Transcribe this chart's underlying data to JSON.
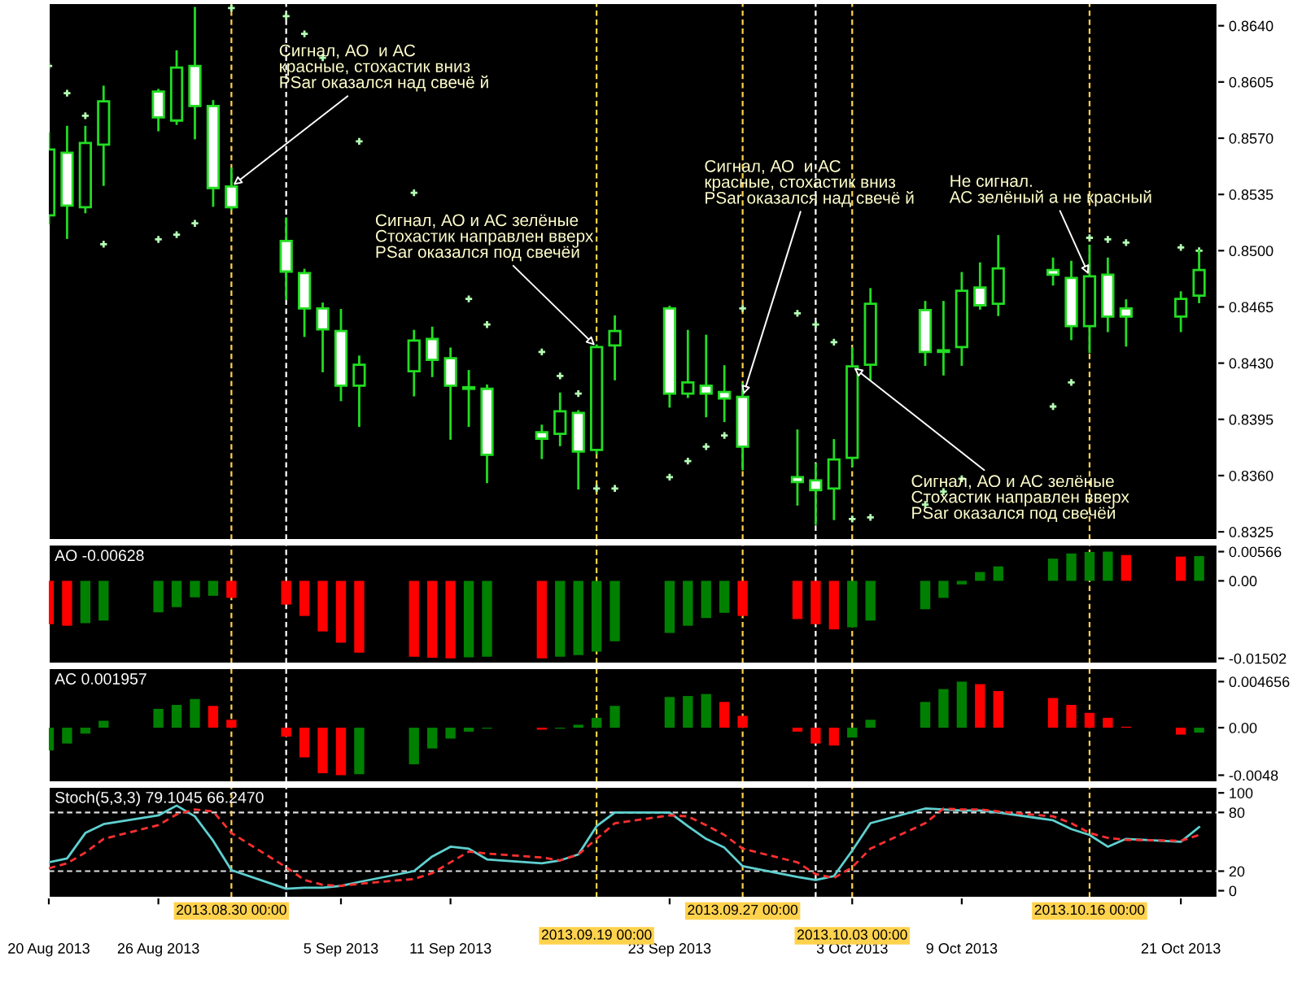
{
  "chart_data": [
    {
      "type": "candlestick",
      "color": "#22dd22",
      "xlim": [
        "2013-08-20",
        "2013-10-23"
      ],
      "tick_labels": "y",
      "x": [
        "2013-08-20",
        "2013-08-21",
        "2013-08-22",
        "2013-08-23",
        "2013-08-26",
        "2013-08-27",
        "2013-08-28",
        "2013-08-29",
        "2013-08-30",
        "2013-09-02",
        "2013-09-03",
        "2013-09-04",
        "2013-09-05",
        "2013-09-06",
        "2013-09-09",
        "2013-09-10",
        "2013-09-11",
        "2013-09-12",
        "2013-09-13",
        "2013-09-16",
        "2013-09-17",
        "2013-09-18",
        "2013-09-19",
        "2013-09-20",
        "2013-09-23",
        "2013-09-24",
        "2013-09-25",
        "2013-09-26",
        "2013-09-27",
        "2013-09-30",
        "2013-10-01",
        "2013-10-02",
        "2013-10-03",
        "2013-10-04",
        "2013-10-07",
        "2013-10-08",
        "2013-10-09",
        "2013-10-10",
        "2013-10-11",
        "2013-10-14",
        "2013-10-15",
        "2013-10-16",
        "2013-10-17",
        "2013-10-18",
        "2013-10-21",
        "2013-10-22"
      ],
      "ohlc": [
        [
          0.8522,
          0.8573,
          0.8517,
          0.8563
        ],
        [
          0.8561,
          0.8577,
          0.8508,
          0.8528
        ],
        [
          0.8527,
          0.8577,
          0.8524,
          0.8567
        ],
        [
          0.8566,
          0.8602,
          0.8541,
          0.8593
        ],
        [
          0.8599,
          0.86,
          0.8575,
          0.8583
        ],
        [
          0.8581,
          0.8624,
          0.8579,
          0.8614
        ],
        [
          0.8615,
          0.8651,
          0.857,
          0.859
        ],
        [
          0.859,
          0.8593,
          0.8528,
          0.8539
        ],
        [
          0.854,
          0.8551,
          0.8526,
          0.8527
        ],
        [
          0.8506,
          0.852,
          0.847,
          0.8487
        ],
        [
          0.8486,
          0.8488,
          0.8447,
          0.8464
        ],
        [
          0.8464,
          0.8467,
          0.8425,
          0.8451
        ],
        [
          0.845,
          0.8463,
          0.8407,
          0.8416
        ],
        [
          0.8416,
          0.8434,
          0.8391,
          0.8429
        ],
        [
          0.8425,
          0.845,
          0.841,
          0.8444
        ],
        [
          0.8445,
          0.8452,
          0.8422,
          0.8432
        ],
        [
          0.8433,
          0.8439,
          0.8383,
          0.8416
        ],
        [
          0.8415,
          0.8425,
          0.8391,
          0.8414
        ],
        [
          0.8414,
          0.8416,
          0.8356,
          0.8373
        ],
        [
          0.8387,
          0.8391,
          0.8371,
          0.8383
        ],
        [
          0.8386,
          0.8411,
          0.8379,
          0.84
        ],
        [
          0.8399,
          0.84,
          0.8352,
          0.8375
        ],
        [
          0.8376,
          0.8441,
          0.8374,
          0.844
        ],
        [
          0.8441,
          0.8459,
          0.842,
          0.845
        ],
        [
          0.8464,
          0.8465,
          0.8403,
          0.8411
        ],
        [
          0.8411,
          0.845,
          0.8409,
          0.8418
        ],
        [
          0.8416,
          0.8447,
          0.8397,
          0.8411
        ],
        [
          0.8412,
          0.8428,
          0.8394,
          0.8408
        ],
        [
          0.8409,
          0.8417,
          0.8364,
          0.8378
        ],
        [
          0.8359,
          0.8388,
          0.8342,
          0.8356
        ],
        [
          0.8357,
          0.8367,
          0.833,
          0.8351
        ],
        [
          0.8352,
          0.8382,
          0.8333,
          0.837
        ],
        [
          0.8371,
          0.8439,
          0.8366,
          0.8428
        ],
        [
          0.8429,
          0.8476,
          0.842,
          0.8467
        ],
        [
          0.8463,
          0.8468,
          0.8429,
          0.8437
        ],
        [
          0.8437,
          0.8468,
          0.8423,
          0.8438
        ],
        [
          0.844,
          0.8486,
          0.8429,
          0.8475
        ],
        [
          0.8477,
          0.8492,
          0.8464,
          0.8466
        ],
        [
          0.8467,
          0.8509,
          0.846,
          0.8489
        ],
        [
          0.8488,
          0.8495,
          0.8479,
          0.8485
        ],
        [
          0.8483,
          0.8493,
          0.8445,
          0.8453
        ],
        [
          0.8453,
          0.8503,
          0.8437,
          0.8484
        ],
        [
          0.8485,
          0.8495,
          0.845,
          0.8459
        ],
        [
          0.8464,
          0.8469,
          0.8441,
          0.8459
        ],
        [
          0.8459,
          0.8474,
          0.845,
          0.847
        ],
        [
          0.8472,
          0.85,
          0.8468,
          0.8488
        ]
      ],
      "series": [
        {
          "type": "scatter",
          "color": "#b4ffb4",
          "marker": "cross",
          "values": [
            0.8615,
            0.8598,
            0.8584,
            0.8504,
            0.8507,
            0.851,
            0.8517,
            null,
            0.8651,
            0.8646,
            0.8635,
            0.862,
            null,
            0.8568,
            0.8536,
            null,
            null,
            0.847,
            0.8454,
            0.8437,
            0.8422,
            0.8411,
            0.8352,
            0.8352,
            0.8359,
            0.8369,
            0.8378,
            0.8385,
            0.8464,
            0.8461,
            0.8454,
            0.8443,
            0.8333,
            0.8334,
            0.8342,
            0.835,
            0.8358,
            null,
            null,
            0.8403,
            0.8418,
            0.8508,
            0.8507,
            0.8505,
            0.8502,
            0.85
          ]
        }
      ],
      "ylim": [
        0.832,
        0.8654
      ],
      "yticks": [
        {
          "value": 0.8325,
          "label": "0.8325"
        },
        {
          "value": 0.836,
          "label": "0.8360"
        },
        {
          "value": 0.8395,
          "label": "0.8395"
        },
        {
          "value": 0.843,
          "label": "0.8430"
        },
        {
          "value": 0.8465,
          "label": "0.8465"
        },
        {
          "value": 0.85,
          "label": "0.8500"
        },
        {
          "value": 0.8535,
          "label": "0.8535"
        },
        {
          "value": 0.857,
          "label": "0.8570"
        },
        {
          "value": 0.8605,
          "label": "0.8605"
        },
        {
          "value": 0.864,
          "label": "0.8640"
        }
      ],
      "annotations": [
        {
          "text": "Сигнал, АО  и АС\nкрасные, стохастик вниз\nPSar оказался над свечё й",
          "x": "2013-08-30",
          "y": 0.854
        },
        {
          "text": "Сигнал, АО и АС зелёные\nСтохастик направлен вверх\nPSar оказался под свечёй",
          "x": "2013-09-19",
          "y": 0.844
        },
        {
          "text": "Сигнал, АО  и АС\nкрасные, стохастик вниз\nPSar оказался над свечё й",
          "x": "2013-09-27",
          "y": 0.8409
        },
        {
          "text": "Сигнал, АО и АС зелёные\nСтохастик направлен вверх\nPSar оказался под свечёй",
          "x": "2013-10-03",
          "y": 0.8428
        },
        {
          "text": "Не сигнал.\nАС зелёный а не красный",
          "x": "2013-10-16",
          "y": 0.8484
        }
      ],
      "ref_lines": [
        {
          "axis": "x",
          "value": "2013-08-30",
          "color": "#ffd24d",
          "line_style": "dashed"
        },
        {
          "axis": "x",
          "value": "2013-09-02",
          "color": "#ffffff",
          "line_style": "dashed"
        },
        {
          "axis": "x",
          "value": "2013-09-19",
          "color": "#ffd24d",
          "line_style": "dashed"
        },
        {
          "axis": "x",
          "value": "2013-09-27",
          "color": "#ffd24d",
          "line_style": "dashed"
        },
        {
          "axis": "x",
          "value": "2013-10-01",
          "color": "#ffffff",
          "line_style": "dashed"
        },
        {
          "axis": "x",
          "value": "2013-10-03",
          "color": "#ffd24d",
          "line_style": "dashed"
        },
        {
          "axis": "x",
          "value": "2013-10-16",
          "color": "#ffd24d",
          "line_style": "dashed"
        }
      ]
    },
    {
      "type": "bar",
      "title": "AO -0.00628",
      "xlim": [
        "2013-08-20",
        "2013-10-23"
      ],
      "tick_labels": "y",
      "x": [
        "2013-08-20",
        "2013-08-21",
        "2013-08-22",
        "2013-08-23",
        "2013-08-26",
        "2013-08-27",
        "2013-08-28",
        "2013-08-29",
        "2013-08-30",
        "2013-09-02",
        "2013-09-03",
        "2013-09-04",
        "2013-09-05",
        "2013-09-06",
        "2013-09-09",
        "2013-09-10",
        "2013-09-11",
        "2013-09-12",
        "2013-09-13",
        "2013-09-16",
        "2013-09-17",
        "2013-09-18",
        "2013-09-19",
        "2013-09-20",
        "2013-09-23",
        "2013-09-24",
        "2013-09-25",
        "2013-09-26",
        "2013-09-27",
        "2013-09-30",
        "2013-10-01",
        "2013-10-02",
        "2013-10-03",
        "2013-10-04",
        "2013-10-07",
        "2013-10-08",
        "2013-10-09",
        "2013-10-10",
        "2013-10-11",
        "2013-10-14",
        "2013-10-15",
        "2013-10-16",
        "2013-10-17",
        "2013-10-18",
        "2013-10-21",
        "2013-10-22"
      ],
      "values": [
        -0.0084,
        -0.0087,
        -0.0082,
        -0.0077,
        -0.0061,
        -0.0051,
        -0.0032,
        -0.0029,
        -0.0033,
        -0.0046,
        -0.0068,
        -0.0098,
        -0.012,
        -0.0139,
        -0.0147,
        -0.0149,
        -0.01502,
        -0.0148,
        -0.0147,
        -0.015,
        -0.0147,
        -0.0144,
        -0.0137,
        -0.0117,
        -0.0101,
        -0.0087,
        -0.0072,
        -0.0062,
        -0.0068,
        -0.0074,
        -0.0084,
        -0.0094,
        -0.009,
        -0.0077,
        -0.0055,
        -0.0033,
        -0.0007,
        0.0017,
        0.0028,
        0.0043,
        0.0053,
        0.0056,
        0.00566,
        0.005,
        0.0047,
        0.0048
      ],
      "colors": [
        "#ff0000",
        "#ff0000",
        "#008000",
        "#008000",
        "#008000",
        "#008000",
        "#008000",
        "#008000",
        "#ff0000",
        "#ff0000",
        "#ff0000",
        "#ff0000",
        "#ff0000",
        "#ff0000",
        "#ff0000",
        "#ff0000",
        "#ff0000",
        "#008000",
        "#008000",
        "#ff0000",
        "#008000",
        "#008000",
        "#008000",
        "#008000",
        "#008000",
        "#008000",
        "#008000",
        "#008000",
        "#ff0000",
        "#ff0000",
        "#ff0000",
        "#ff0000",
        "#008000",
        "#008000",
        "#008000",
        "#008000",
        "#008000",
        "#008000",
        "#008000",
        "#008000",
        "#008000",
        "#008000",
        "#008000",
        "#ff0000",
        "#ff0000",
        "#008000"
      ],
      "ylim": [
        -0.016,
        0.007
      ],
      "yticks": [
        {
          "value": 0.00566,
          "label": "0.00566"
        },
        {
          "value": 0,
          "label": "0.00"
        },
        {
          "value": -0.01502,
          "label": "-0.01502"
        }
      ],
      "ref_lines": [
        {
          "axis": "x",
          "value": "2013-08-30",
          "color": "#ffd24d",
          "line_style": "dashed"
        },
        {
          "axis": "x",
          "value": "2013-09-02",
          "color": "#ffffff",
          "line_style": "dashed"
        },
        {
          "axis": "x",
          "value": "2013-09-19",
          "color": "#ffd24d",
          "line_style": "dashed"
        },
        {
          "axis": "x",
          "value": "2013-09-27",
          "color": "#ffd24d",
          "line_style": "dashed"
        },
        {
          "axis": "x",
          "value": "2013-10-01",
          "color": "#ffffff",
          "line_style": "dashed"
        },
        {
          "axis": "x",
          "value": "2013-10-03",
          "color": "#ffd24d",
          "line_style": "dashed"
        },
        {
          "axis": "x",
          "value": "2013-10-16",
          "color": "#ffd24d",
          "line_style": "dashed"
        }
      ]
    },
    {
      "type": "bar",
      "title": "AC 0.001957",
      "xlim": [
        "2013-08-20",
        "2013-10-23"
      ],
      "tick_labels": "y",
      "x": [
        "2013-08-20",
        "2013-08-21",
        "2013-08-22",
        "2013-08-23",
        "2013-08-26",
        "2013-08-27",
        "2013-08-28",
        "2013-08-29",
        "2013-08-30",
        "2013-09-02",
        "2013-09-03",
        "2013-09-04",
        "2013-09-05",
        "2013-09-06",
        "2013-09-09",
        "2013-09-10",
        "2013-09-11",
        "2013-09-12",
        "2013-09-13",
        "2013-09-16",
        "2013-09-17",
        "2013-09-18",
        "2013-09-19",
        "2013-09-20",
        "2013-09-23",
        "2013-09-24",
        "2013-09-25",
        "2013-09-26",
        "2013-09-27",
        "2013-09-30",
        "2013-10-01",
        "2013-10-02",
        "2013-10-03",
        "2013-10-04",
        "2013-10-07",
        "2013-10-08",
        "2013-10-09",
        "2013-10-10",
        "2013-10-11",
        "2013-10-14",
        "2013-10-15",
        "2013-10-16",
        "2013-10-17",
        "2013-10-18",
        "2013-10-21",
        "2013-10-22"
      ],
      "values": [
        -0.0023,
        -0.0016,
        -0.0006,
        0.0007,
        0.0019,
        0.0023,
        0.0029,
        0.0022,
        0.0008,
        -0.0009,
        -0.003,
        -0.0046,
        -0.0048,
        -0.0047,
        -0.0037,
        -0.0021,
        -0.0011,
        -0.0004,
        -0.0001,
        -0.0002,
        -0.0001,
        0.0003,
        0.001,
        0.0022,
        0.0031,
        0.0032,
        0.0034,
        0.0026,
        0.0012,
        -0.0004,
        -0.0016,
        -0.0018,
        -0.001,
        0.0008,
        0.0026,
        0.0039,
        0.004656,
        0.0044,
        0.0037,
        0.003,
        0.0023,
        0.0015,
        0.001,
        0.0001,
        -0.0007,
        -0.0005
      ],
      "colors": [
        "#008000",
        "#008000",
        "#008000",
        "#008000",
        "#008000",
        "#008000",
        "#008000",
        "#ff0000",
        "#ff0000",
        "#ff0000",
        "#ff0000",
        "#ff0000",
        "#ff0000",
        "#008000",
        "#008000",
        "#008000",
        "#008000",
        "#008000",
        "#008000",
        "#ff0000",
        "#008000",
        "#008000",
        "#008000",
        "#008000",
        "#008000",
        "#008000",
        "#008000",
        "#ff0000",
        "#ff0000",
        "#ff0000",
        "#ff0000",
        "#ff0000",
        "#008000",
        "#008000",
        "#008000",
        "#008000",
        "#008000",
        "#ff0000",
        "#ff0000",
        "#ff0000",
        "#ff0000",
        "#ff0000",
        "#ff0000",
        "#ff0000",
        "#ff0000",
        "#008000"
      ],
      "ylim": [
        -0.0055,
        0.006
      ],
      "yticks": [
        {
          "value": 0.004656,
          "label": "0.004656"
        },
        {
          "value": 0,
          "label": "0.00"
        },
        {
          "value": -0.0048,
          "label": "-0.0048"
        }
      ],
      "ref_lines": [
        {
          "axis": "x",
          "value": "2013-08-30",
          "color": "#ffd24d",
          "line_style": "dashed"
        },
        {
          "axis": "x",
          "value": "2013-09-02",
          "color": "#ffffff",
          "line_style": "dashed"
        },
        {
          "axis": "x",
          "value": "2013-09-19",
          "color": "#ffd24d",
          "line_style": "dashed"
        },
        {
          "axis": "x",
          "value": "2013-09-27",
          "color": "#ffd24d",
          "line_style": "dashed"
        },
        {
          "axis": "x",
          "value": "2013-10-01",
          "color": "#ffffff",
          "line_style": "dashed"
        },
        {
          "axis": "x",
          "value": "2013-10-03",
          "color": "#ffd24d",
          "line_style": "dashed"
        },
        {
          "axis": "x",
          "value": "2013-10-16",
          "color": "#ffd24d",
          "line_style": "dashed"
        }
      ]
    },
    {
      "type": "line",
      "title": "Stoch(5,3,3) 79.1045 66.2470",
      "xlim": [
        "2013-08-20",
        "2013-10-23"
      ],
      "x": [
        "2013-08-20",
        "2013-08-21",
        "2013-08-22",
        "2013-08-23",
        "2013-08-26",
        "2013-08-27",
        "2013-08-28",
        "2013-08-29",
        "2013-08-30",
        "2013-09-02",
        "2013-09-03",
        "2013-09-04",
        "2013-09-05",
        "2013-09-06",
        "2013-09-09",
        "2013-09-10",
        "2013-09-11",
        "2013-09-12",
        "2013-09-13",
        "2013-09-16",
        "2013-09-17",
        "2013-09-18",
        "2013-09-19",
        "2013-09-20",
        "2013-09-23",
        "2013-09-24",
        "2013-09-25",
        "2013-09-26",
        "2013-09-27",
        "2013-09-30",
        "2013-10-01",
        "2013-10-02",
        "2013-10-03",
        "2013-10-04",
        "2013-10-07",
        "2013-10-08",
        "2013-10-09",
        "2013-10-10",
        "2013-10-11",
        "2013-10-14",
        "2013-10-15",
        "2013-10-16",
        "2013-10-17",
        "2013-10-18",
        "2013-10-21",
        "2013-10-22"
      ],
      "series": [
        {
          "color": "#5fd0d0",
          "line_style": "solid",
          "values": [
            29,
            33,
            59,
            68,
            77,
            87,
            76,
            51,
            21,
            2,
            3,
            3,
            5,
            9,
            20,
            35,
            45,
            43,
            32,
            28,
            31,
            37,
            66,
            80,
            80,
            66,
            53,
            44,
            25,
            14,
            11,
            15,
            41,
            69,
            84,
            83,
            82,
            82,
            80,
            72,
            63,
            57,
            45,
            53,
            50,
            65
          ]
        },
        {
          "color": "#ff3030",
          "line_style": "dashed",
          "values": [
            23,
            28,
            39,
            53,
            67,
            78,
            83,
            81,
            59,
            24,
            11,
            6,
            5,
            7,
            12,
            18,
            29,
            40,
            38,
            34,
            31,
            37,
            53,
            69,
            77,
            76,
            67,
            57,
            43,
            29,
            17,
            13,
            24,
            43,
            69,
            84,
            83,
            83,
            81,
            76,
            69,
            59,
            54,
            52,
            51,
            57
          ]
        }
      ],
      "ylim": [
        -7,
        106
      ],
      "yticks": [
        0,
        20,
        80,
        100
      ],
      "xticks": [
        {
          "value": "2013-08-20",
          "label": "20 Aug 2013"
        },
        {
          "value": "2013-08-26",
          "label": "26 Aug 2013"
        },
        {
          "value": "2013-09-05",
          "label": "5 Sep 2013"
        },
        {
          "value": "2013-09-11",
          "label": "11 Sep 2013"
        },
        {
          "value": "2013-09-23",
          "label": "23 Sep 2013"
        },
        {
          "value": "2013-10-03",
          "label": "3 Oct 2013"
        },
        {
          "value": "2013-10-09",
          "label": "9 Oct 2013"
        },
        {
          "value": "2013-10-21",
          "label": "21 Oct 2013"
        }
      ],
      "ref_lines": [
        {
          "axis": "y",
          "value": 80,
          "color": "#dddddd",
          "line_style": "dashed"
        },
        {
          "axis": "y",
          "value": 20,
          "color": "#dddddd",
          "line_style": "dashed"
        },
        {
          "axis": "x",
          "value": "2013-08-30",
          "color": "#ffd24d",
          "line_style": "dashed",
          "label": "2013.08.30 00:00"
        },
        {
          "axis": "x",
          "value": "2013-09-02",
          "color": "#ffffff",
          "line_style": "dashed"
        },
        {
          "axis": "x",
          "value": "2013-09-19",
          "color": "#ffd24d",
          "line_style": "dashed",
          "label": "2013.09.19 00:00"
        },
        {
          "axis": "x",
          "value": "2013-09-27",
          "color": "#ffd24d",
          "line_style": "dashed",
          "label": "2013.09.27 00:00"
        },
        {
          "axis": "x",
          "value": "2013-10-01",
          "color": "#ffffff",
          "line_style": "dashed"
        },
        {
          "axis": "x",
          "value": "2013-10-03",
          "color": "#ffd24d",
          "line_style": "dashed",
          "label": "2013.10.03 00:00"
        },
        {
          "axis": "x",
          "value": "2013-10-16",
          "color": "#ffd24d",
          "line_style": "dashed",
          "label": "2013.10.16 00:00"
        }
      ]
    }
  ]
}
